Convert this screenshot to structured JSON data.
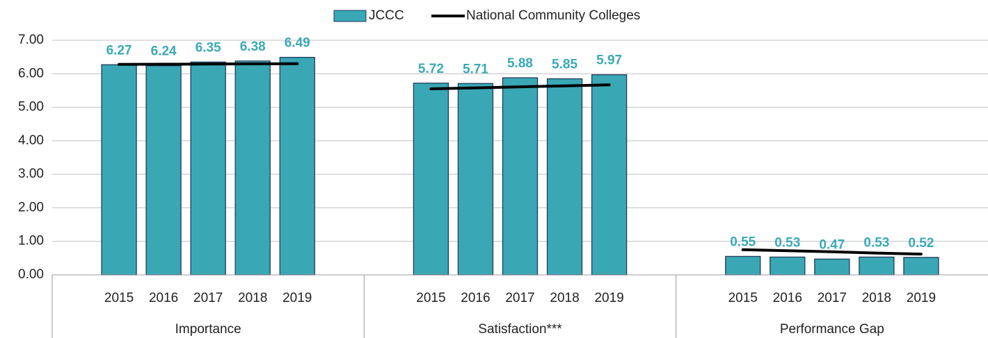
{
  "chart_data": {
    "type": "bar",
    "series": [
      {
        "name": "JCCC",
        "color": "#3aa7b5"
      },
      {
        "name": "National Community Colleges",
        "color": "#000000"
      }
    ],
    "groups": [
      {
        "name": "Importance",
        "categories": [
          "2015",
          "2016",
          "2017",
          "2018",
          "2019"
        ],
        "values": [
          6.27,
          6.24,
          6.35,
          6.38,
          6.49
        ],
        "line_values": [
          6.28,
          6.285,
          6.29,
          6.295,
          6.3
        ]
      },
      {
        "name": "Satisfaction***",
        "categories": [
          "2015",
          "2016",
          "2017",
          "2018",
          "2019"
        ],
        "values": [
          5.72,
          5.71,
          5.88,
          5.85,
          5.97
        ],
        "line_values": [
          5.55,
          5.58,
          5.61,
          5.64,
          5.67
        ]
      },
      {
        "name": "Performance Gap",
        "categories": [
          "2015",
          "2016",
          "2017",
          "2018",
          "2019"
        ],
        "values": [
          0.55,
          0.53,
          0.47,
          0.53,
          0.52
        ],
        "line_values": [
          0.75,
          0.72,
          0.69,
          0.65,
          0.62
        ]
      }
    ],
    "ylim": [
      0,
      7
    ],
    "yticks": [
      {
        "value": 0,
        "label": "0.00"
      },
      {
        "value": 1,
        "label": "1.00"
      },
      {
        "value": 2,
        "label": "2.00"
      },
      {
        "value": 3,
        "label": "3.00"
      },
      {
        "value": 4,
        "label": "4.00"
      },
      {
        "value": 5,
        "label": "5.00"
      },
      {
        "value": 6,
        "label": "6.00"
      },
      {
        "value": 7,
        "label": "7.00"
      }
    ],
    "grid": true
  }
}
